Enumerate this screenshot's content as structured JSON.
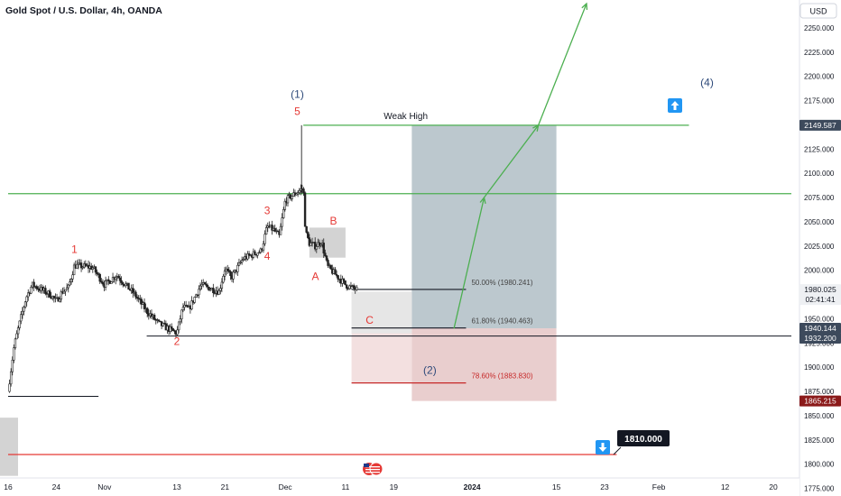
{
  "header": {
    "title": "Gold Spot / U.S. Dollar, 4h, OANDA",
    "currency_label": "USD"
  },
  "colors": {
    "up": "#222222",
    "down": "#222222",
    "green": "#4caf50",
    "red": "#e53935",
    "navy": "#2e4a7a",
    "wave": "#e53935",
    "price_tag_dark": "#3d4a5c",
    "price_tag_red": "#8b1a1a"
  },
  "chart_data": {
    "type": "candlestick",
    "title": "Gold Spot / U.S. Dollar, 4h, OANDA",
    "ylim": [
      1770,
      2275
    ],
    "y_ticks": [
      1775,
      1800,
      1825,
      1850,
      1875,
      1900,
      1925,
      1950,
      1975,
      2000,
      2025,
      2050,
      2075,
      2100,
      2125,
      2150,
      2175,
      2200,
      2225,
      2250
    ],
    "y_tick_labels": [
      "1775.000",
      "1800.000",
      "1825.000",
      "1850.000",
      "1875.000",
      "1900.000",
      "1925.000",
      "1950.000",
      "1975.000",
      "2000.000",
      "2025.000",
      "2050.000",
      "2075.000",
      "2100.000",
      "2125.000",
      "2150.000",
      "2175.000",
      "2200.000",
      "2225.000",
      "2250.000"
    ],
    "x_ticks": [
      {
        "date": "2023-10-16",
        "label": "16"
      },
      {
        "date": "2023-10-24",
        "label": "24"
      },
      {
        "date": "2023-11-01",
        "label": "Nov"
      },
      {
        "date": "2023-11-13",
        "label": "13"
      },
      {
        "date": "2023-11-21",
        "label": "21"
      },
      {
        "date": "2023-12-01",
        "label": "Dec"
      },
      {
        "date": "2023-12-11",
        "label": "11"
      },
      {
        "date": "2023-12-19",
        "label": "19"
      },
      {
        "date": "2024-01-01",
        "label": "2024"
      },
      {
        "date": "2024-01-15",
        "label": "15"
      },
      {
        "date": "2024-01-23",
        "label": "23"
      },
      {
        "date": "2024-02-01",
        "label": "Feb"
      },
      {
        "date": "2024-02-12",
        "label": "12"
      },
      {
        "date": "2024-02-20",
        "label": "20"
      }
    ],
    "xlim": [
      "2023-10-16",
      "2024-02-23"
    ],
    "price_path": [
      [
        "2023-10-16",
        1875
      ],
      [
        "2023-10-17",
        1922
      ],
      [
        "2023-10-18",
        1948
      ],
      [
        "2023-10-19",
        1972
      ],
      [
        "2023-10-20",
        1985
      ],
      [
        "2023-10-23",
        1975
      ],
      [
        "2023-10-24",
        1968
      ],
      [
        "2023-10-25",
        1978
      ],
      [
        "2023-10-26",
        1982
      ],
      [
        "2023-10-27",
        2005
      ],
      [
        "2023-10-30",
        2003
      ],
      [
        "2023-11-01",
        1985
      ],
      [
        "2023-11-02",
        1990
      ],
      [
        "2023-11-03",
        1995
      ],
      [
        "2023-11-06",
        1975
      ],
      [
        "2023-11-08",
        1958
      ],
      [
        "2023-11-10",
        1945
      ],
      [
        "2023-11-13",
        1935
      ],
      [
        "2023-11-14",
        1962
      ],
      [
        "2023-11-15",
        1960
      ],
      [
        "2023-11-17",
        1985
      ],
      [
        "2023-11-20",
        1978
      ],
      [
        "2023-11-21",
        2002
      ],
      [
        "2023-11-22",
        1992
      ],
      [
        "2023-11-24",
        2012
      ],
      [
        "2023-11-27",
        2020
      ],
      [
        "2023-11-28",
        2045
      ],
      [
        "2023-11-29",
        2042
      ],
      [
        "2023-11-30",
        2035
      ],
      [
        "2023-12-01",
        2072
      ],
      [
        "2023-12-04",
        2085
      ],
      [
        "2023-12-04",
        2040
      ],
      [
        "2023-12-05",
        2028
      ],
      [
        "2023-12-06",
        2025
      ],
      [
        "2023-12-07",
        2030
      ],
      [
        "2023-12-08",
        2004
      ],
      [
        "2023-12-11",
        1985
      ],
      [
        "2023-12-12",
        1982
      ],
      [
        "2023-12-13",
        1980
      ]
    ],
    "horizontal_lines": [
      {
        "price": 1932.2,
        "from": "2023-11-08",
        "to": "2024-02-23",
        "color": "black"
      },
      {
        "price": 2079,
        "from": "2023-10-16",
        "to": "2024-02-23",
        "color": "green"
      },
      {
        "price": 1810,
        "from": "2023-10-16",
        "to": "2024-01-25",
        "color": "red"
      },
      {
        "price": 1870,
        "from": "2023-10-16",
        "to": "2023-10-31",
        "color": "black"
      }
    ],
    "weak_high": {
      "label": "Weak High",
      "price": 2149.587,
      "from": "2023-12-04",
      "to": "2024-02-06"
    },
    "fib_levels": [
      {
        "label": "50.00% (1980.241)",
        "price": 1980.241,
        "color": "black"
      },
      {
        "label": "61.80% (1940.463)",
        "price": 1940.463,
        "color": "black"
      },
      {
        "label": "78.60% (1883.830)",
        "price": 1883.83,
        "color": "red"
      }
    ],
    "position": {
      "entry": 1940.144,
      "target": 2149.587,
      "stop": 1865.215,
      "from": "2023-12-22",
      "to": "2024-01-15"
    },
    "projection_path": [
      [
        "2023-12-29",
        1940
      ],
      [
        "2024-01-03",
        2075
      ],
      [
        "2024-01-12",
        2149.587
      ],
      [
        "2024-01-20",
        2275
      ]
    ],
    "wave_labels": [
      {
        "text": "1",
        "date": "2023-10-27",
        "price": 2018,
        "color": "red"
      },
      {
        "text": "2",
        "date": "2023-11-13",
        "price": 1923,
        "color": "red"
      },
      {
        "text": "3",
        "date": "2023-11-28",
        "price": 2058,
        "color": "red"
      },
      {
        "text": "4",
        "date": "2023-11-28",
        "price": 2011,
        "color": "red"
      },
      {
        "text": "5",
        "date": "2023-12-03",
        "price": 2160,
        "color": "red"
      },
      {
        "text": "(1)",
        "date": "2023-12-03",
        "price": 2178,
        "color": "navy"
      },
      {
        "text": "A",
        "date": "2023-12-06",
        "price": 1990,
        "color": "red"
      },
      {
        "text": "B",
        "date": "2023-12-09",
        "price": 2047,
        "color": "red"
      },
      {
        "text": "C",
        "date": "2023-12-15",
        "price": 1945,
        "color": "red"
      },
      {
        "text": "(2)",
        "date": "2023-12-25",
        "price": 1893,
        "color": "navy"
      },
      {
        "text": "(4)",
        "date": "2024-02-09",
        "price": 2190,
        "color": "navy"
      }
    ],
    "price_tags": [
      {
        "price": 2149.587,
        "label": "2149.587",
        "style": "dark"
      },
      {
        "price": 1980.025,
        "label": "1980.025",
        "style": "light"
      },
      {
        "price": 1980.025,
        "label": "02:41:41",
        "style": "light_time"
      },
      {
        "price": 1940.144,
        "label": "1940.144",
        "style": "dark"
      },
      {
        "price": 1932.2,
        "label": "1932.200",
        "style": "dark"
      },
      {
        "price": 1865.215,
        "label": "1865.215",
        "style": "red"
      }
    ],
    "callout": {
      "label": "1810.000",
      "price": 1810
    }
  }
}
